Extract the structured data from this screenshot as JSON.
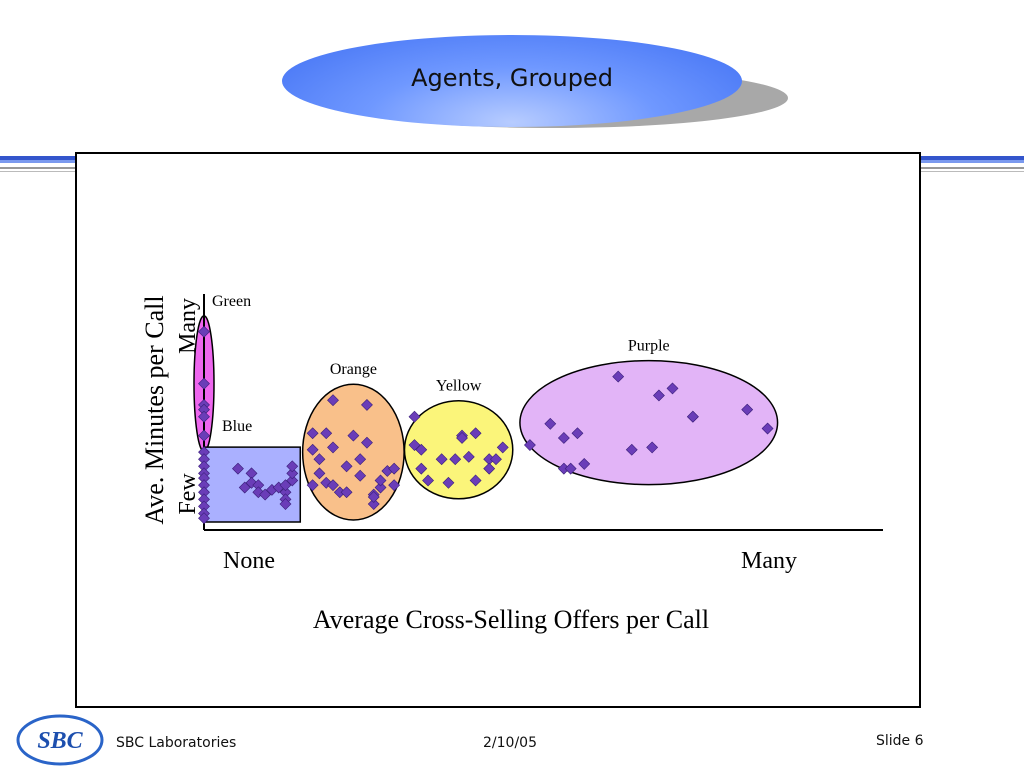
{
  "slide": {
    "title": "Agents, Grouped",
    "footer_org": "SBC Laboratories",
    "footer_date": "2/10/05",
    "footer_slide": "Slide 6",
    "logo_text": "SBC"
  },
  "colors": {
    "title_blue": "#4f7df7",
    "point": "#6a3db8",
    "green_group": "#ee66ee",
    "blue_group": "#aab0ff",
    "orange_group": "#f9c08a",
    "yellow_group": "#fbf57a",
    "purple_group": "#e2b4f7"
  },
  "chart_data": {
    "type": "scatter",
    "xlabel": "Average Cross-Selling Offers per Call",
    "ylabel": "Ave. Minutes per Call",
    "x_ticks": [
      "None",
      "Many"
    ],
    "y_ticks": [
      "Few",
      "Many"
    ],
    "xlim": [
      0,
      100
    ],
    "ylim": [
      0,
      100
    ],
    "groups": [
      {
        "label": "Green",
        "shape": "ellipse",
        "points": [
          [
            0,
            84
          ],
          [
            0,
            62
          ],
          [
            0,
            53
          ],
          [
            0,
            51
          ],
          [
            0,
            48
          ],
          [
            0,
            40
          ]
        ]
      },
      {
        "label": "Blue",
        "shape": "rectangle",
        "points": [
          [
            0,
            33
          ],
          [
            0,
            30
          ],
          [
            0,
            27
          ],
          [
            0,
            24
          ],
          [
            0,
            22
          ],
          [
            0,
            19
          ],
          [
            0,
            16
          ],
          [
            0,
            13
          ],
          [
            0,
            10
          ],
          [
            0,
            7
          ],
          [
            0,
            5
          ],
          [
            5,
            26
          ],
          [
            7,
            24
          ],
          [
            7,
            20
          ],
          [
            6,
            18
          ],
          [
            8,
            19
          ],
          [
            8,
            16
          ],
          [
            10,
            17
          ],
          [
            9,
            15
          ],
          [
            11,
            18
          ],
          [
            12,
            16
          ],
          [
            13,
            21
          ],
          [
            12,
            19
          ],
          [
            12,
            13
          ],
          [
            12,
            11
          ],
          [
            13,
            24
          ],
          [
            13,
            27
          ]
        ]
      },
      {
        "label": "Orange",
        "shape": "ellipse",
        "points": [
          [
            16,
            41
          ],
          [
            18,
            41
          ],
          [
            19,
            35
          ],
          [
            16,
            34
          ],
          [
            17,
            30
          ],
          [
            17,
            24
          ],
          [
            16,
            19
          ],
          [
            18,
            20
          ],
          [
            19,
            19
          ],
          [
            20,
            16
          ],
          [
            19,
            55
          ],
          [
            22,
            40
          ],
          [
            24,
            37
          ],
          [
            23,
            30
          ],
          [
            21,
            27
          ],
          [
            23,
            23
          ],
          [
            21,
            16
          ],
          [
            26,
            18
          ],
          [
            25,
            15
          ],
          [
            25,
            11
          ],
          [
            27,
            25
          ],
          [
            24,
            53
          ],
          [
            28,
            26
          ],
          [
            26,
            21
          ],
          [
            28,
            19
          ],
          [
            25,
            14
          ]
        ]
      },
      {
        "label": "Yellow",
        "shape": "ellipse",
        "points": [
          [
            31,
            48
          ],
          [
            31,
            36
          ],
          [
            32,
            34
          ],
          [
            32,
            26
          ],
          [
            33,
            21
          ],
          [
            35,
            30
          ],
          [
            36,
            20
          ],
          [
            37,
            30
          ],
          [
            38,
            40
          ],
          [
            38,
            39
          ],
          [
            39,
            31
          ],
          [
            40,
            21
          ],
          [
            40,
            41
          ],
          [
            42,
            30
          ],
          [
            42,
            26
          ],
          [
            43,
            30
          ],
          [
            44,
            35
          ]
        ]
      },
      {
        "label": "Purple",
        "shape": "ellipse",
        "points": [
          [
            48,
            36
          ],
          [
            51,
            45
          ],
          [
            53,
            26
          ],
          [
            53,
            39
          ],
          [
            56,
            28
          ],
          [
            55,
            41
          ],
          [
            61,
            65
          ],
          [
            63,
            34
          ],
          [
            67,
            57
          ],
          [
            66,
            35
          ],
          [
            69,
            60
          ],
          [
            72,
            48
          ],
          [
            72,
            48
          ],
          [
            80,
            51
          ],
          [
            83,
            43
          ],
          [
            54,
            26
          ]
        ]
      }
    ]
  }
}
